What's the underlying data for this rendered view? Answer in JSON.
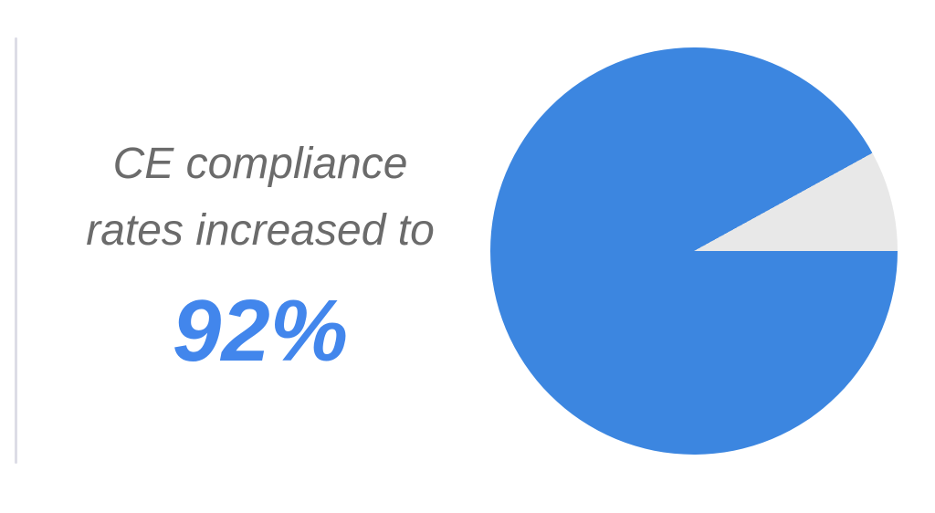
{
  "callout": {
    "line1": "CE compliance",
    "line2": "rates increased to",
    "value": "92%"
  },
  "colors": {
    "background": "#ffffff",
    "accent_line": "#DCDCE6",
    "text_gray": "#6B6B6B",
    "value_blue": "#4286EC",
    "pie_blue": "#3C86E0",
    "slice_gray": "#E8E8E8"
  },
  "chart_data": {
    "type": "pie",
    "title": "CE compliance rates increased to 92%",
    "segments": [
      {
        "name": "compliance-rate",
        "value": 92,
        "color": "#3C86E0"
      },
      {
        "name": "remainder",
        "value": 8,
        "color": "#E8E8E8"
      }
    ],
    "start_angle": "3-o-clock",
    "direction": "clockwise",
    "legend": "none",
    "data_labels": "none"
  }
}
